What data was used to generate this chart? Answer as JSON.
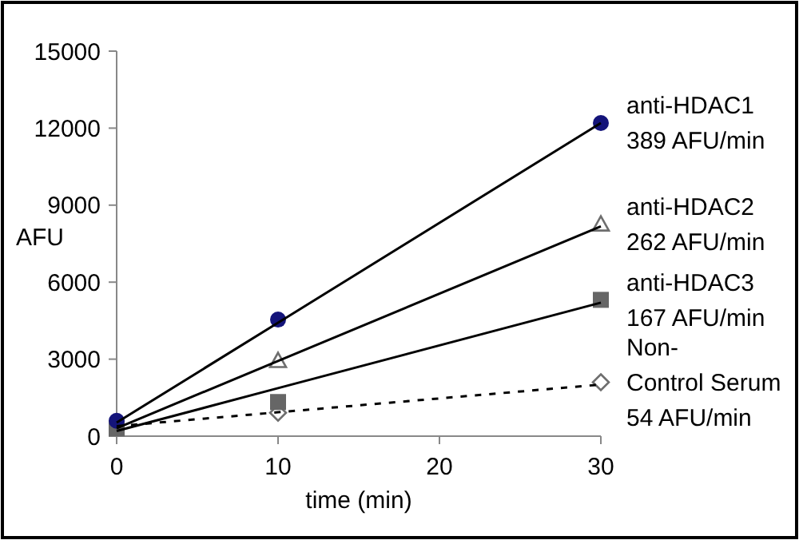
{
  "chart_data": {
    "type": "scatter",
    "xlabel": "time (min)",
    "ylabel": "AFU",
    "xlim": [
      0,
      30
    ],
    "xticks": [
      0,
      10,
      20,
      30
    ],
    "ylim": [
      0,
      15000
    ],
    "yticks": [
      0,
      3000,
      6000,
      9000,
      12000,
      15000
    ],
    "grid": false,
    "x": [
      0,
      10,
      30
    ],
    "series": [
      {
        "name": "anti-HDAC1",
        "marker": "circle",
        "color": "#14147a",
        "values": [
          600,
          4540,
          12200
        ]
      },
      {
        "name": "anti-HDAC2",
        "marker": "triangle",
        "color": "#6e6e6e",
        "values": [
          null,
          2940,
          8260
        ]
      },
      {
        "name": "anti-HDAC3",
        "marker": "square",
        "color": "#666666",
        "values": [
          300,
          1330,
          5310
        ]
      },
      {
        "name": "Non- Control Serum",
        "marker": "diamond",
        "color": "#6e6e6e",
        "values": [
          null,
          910,
          2100
        ]
      },
      {
        "type": "line",
        "color": "#000000",
        "line_style": "solid",
        "values": [
          530,
          4420,
          12200
        ]
      },
      {
        "type": "line",
        "color": "#000000",
        "line_style": "solid",
        "values": [
          310,
          2930,
          8170
        ]
      },
      {
        "type": "line",
        "color": "#000000",
        "line_style": "solid",
        "values": [
          200,
          1870,
          5200
        ]
      },
      {
        "type": "line",
        "color": "#000000",
        "line_style": "dashed",
        "values": [
          390,
          930,
          2010
        ]
      }
    ],
    "annotations": [
      "389 AFU/min",
      "262 AFU/min",
      "167 AFU/min",
      "54 AFU/min"
    ]
  }
}
